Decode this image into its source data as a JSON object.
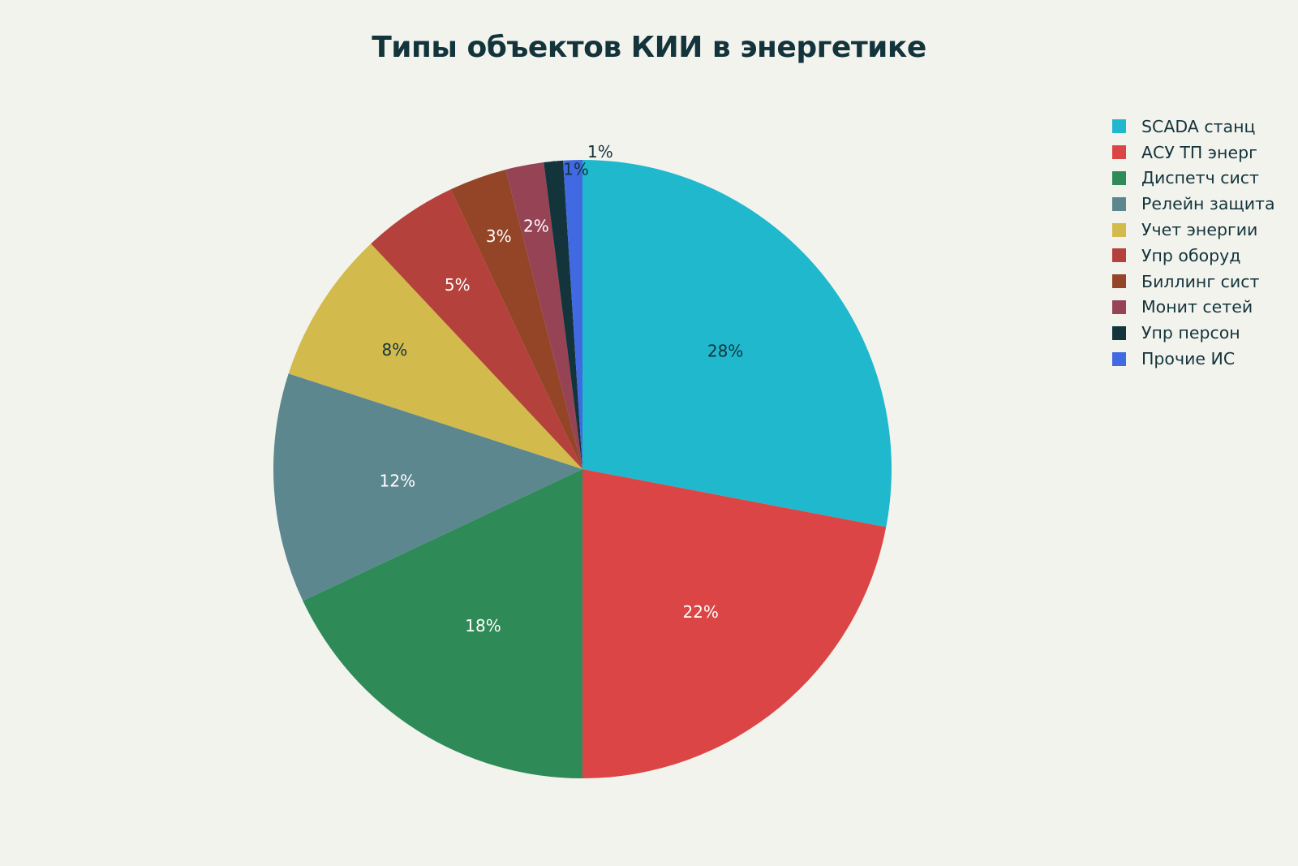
{
  "chart_data": {
    "type": "pie",
    "title": "Типы объектов КИИ в энергетике",
    "categories": [
      "SCADA станц",
      "АСУ ТП энерг",
      "Диспетч сист",
      "Релейн защита",
      "Учет энергии",
      "Упр оборуд",
      "Биллинг сист",
      "Монит сетей",
      "Упр персон",
      "Прочие ИС"
    ],
    "values": [
      28,
      22,
      18,
      12,
      8,
      5,
      3,
      2,
      1,
      1
    ],
    "labels": [
      "28%",
      "22%",
      "18%",
      "12%",
      "8%",
      "5%",
      "3%",
      "2%",
      "1%",
      "1%"
    ],
    "colors": [
      "#1fb8cd",
      "#db4545",
      "#2e8b57",
      "#5d878f",
      "#d2ba4c",
      "#b4413c",
      "#944427",
      "#964455",
      "#13343b",
      "#4169e1"
    ],
    "label_colors": [
      "#13343b",
      "#ffffff",
      "#ffffff",
      "#ffffff",
      "#13343b",
      "#ffffff",
      "#ffffff",
      "#ffffff",
      "#13343b",
      "#13343b"
    ],
    "legend_position": "top-right",
    "direction": "clockwise",
    "start_angle": "12 o'clock"
  }
}
